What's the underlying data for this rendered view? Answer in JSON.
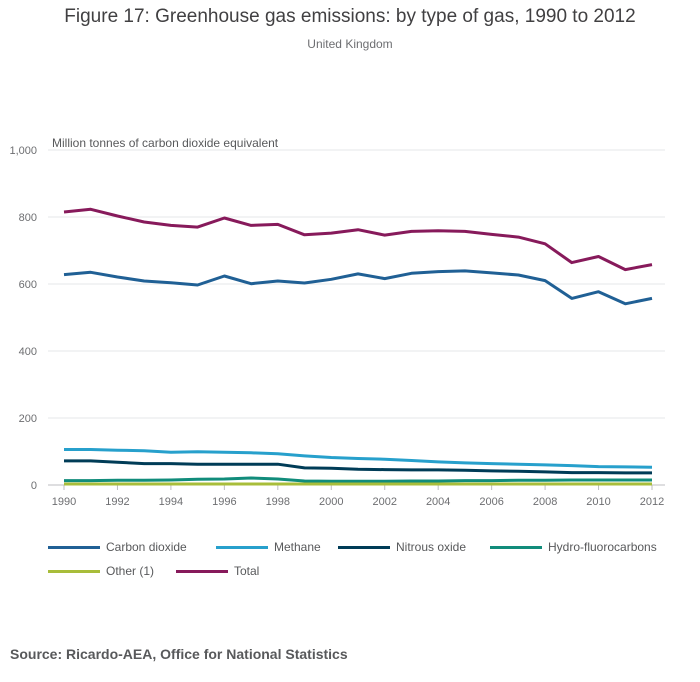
{
  "title": "Figure 17: Greenhouse gas emissions: by type of gas, 1990 to 2012",
  "subtitle": "United Kingdom",
  "source": "Source: Ricardo-AEA, Office for National Statistics",
  "chart_data": {
    "type": "line",
    "ylabel": "Million tonnes of carbon dioxide equivalent",
    "xlabel": "",
    "ylim": [
      0,
      1000
    ],
    "yticks": [
      0,
      200,
      400,
      600,
      800,
      1000
    ],
    "ytick_labels": [
      "0",
      "200",
      "400",
      "600",
      "800",
      "1,000"
    ],
    "xticks": [
      1990,
      1992,
      1994,
      1996,
      1998,
      2000,
      2002,
      2004,
      2006,
      2008,
      2010,
      2012
    ],
    "x": [
      1990,
      1991,
      1992,
      1993,
      1994,
      1995,
      1996,
      1997,
      1998,
      1999,
      2000,
      2001,
      2002,
      2003,
      2004,
      2005,
      2006,
      2007,
      2008,
      2009,
      2010,
      2011,
      2012
    ],
    "grid": true,
    "legend_position": "bottom",
    "series": [
      {
        "name": "Carbon dioxide",
        "color": "#206095",
        "values": [
          628,
          635,
          621,
          609,
          604,
          597,
          624,
          601,
          609,
          603,
          614,
          630,
          616,
          632,
          637,
          639,
          633,
          627,
          610,
          557,
          577,
          541,
          557
        ]
      },
      {
        "name": "Methane",
        "color": "#27a0cc",
        "values": [
          106,
          106,
          104,
          102,
          98,
          99,
          98,
          96,
          93,
          87,
          82,
          79,
          77,
          73,
          69,
          66,
          64,
          62,
          60,
          58,
          55,
          54,
          53
        ]
      },
      {
        "name": "Nitrous oxide",
        "color": "#003c57",
        "values": [
          72,
          72,
          68,
          64,
          64,
          62,
          62,
          62,
          62,
          51,
          50,
          47,
          46,
          45,
          45,
          44,
          42,
          41,
          39,
          37,
          37,
          36,
          36
        ]
      },
      {
        "name": "Hydro-fluorocarbons",
        "color": "#118c7b",
        "values": [
          13,
          13,
          14,
          14,
          15,
          17,
          18,
          21,
          18,
          12,
          11,
          11,
          11,
          12,
          12,
          13,
          13,
          14,
          14,
          15,
          15,
          15,
          15
        ]
      },
      {
        "name": "Other (1)",
        "color": "#a8bd3a",
        "values": [
          3,
          3,
          3,
          3,
          3,
          3,
          3,
          3,
          3,
          3,
          3,
          3,
          3,
          3,
          3,
          3,
          3,
          3,
          3,
          3,
          3,
          3,
          3
        ]
      },
      {
        "name": "Total",
        "color": "#871a5b",
        "values": [
          815,
          823,
          803,
          785,
          775,
          770,
          797,
          775,
          778,
          747,
          752,
          762,
          746,
          757,
          759,
          757,
          748,
          740,
          720,
          664,
          682,
          643,
          658
        ]
      }
    ]
  }
}
